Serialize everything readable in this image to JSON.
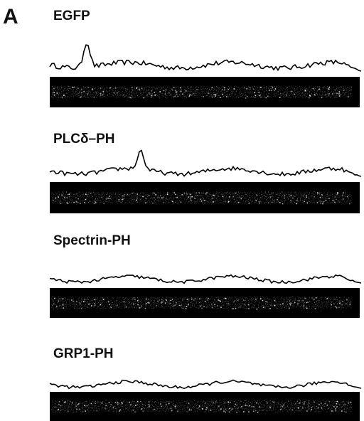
{
  "panel_label": "A",
  "rows": [
    {
      "label": "EGFP"
    },
    {
      "label": "PLCδ–PH"
    },
    {
      "label": "Spectrin-PH"
    },
    {
      "label": "GRP1-PH"
    }
  ]
}
